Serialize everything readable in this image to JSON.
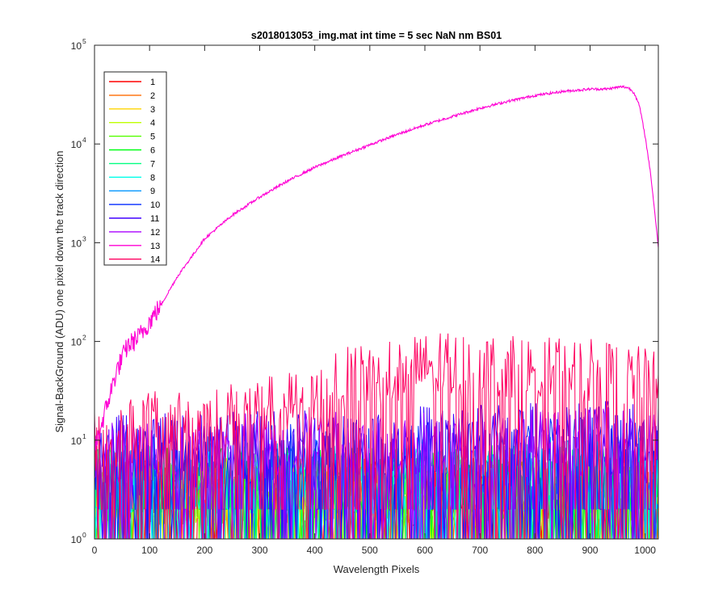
{
  "chart_data": {
    "type": "line",
    "title": "s2018013053_img.mat int time = 5 sec  NaN nm BS01",
    "xlabel": "Wavelength Pixels",
    "ylabel": "Signal-BackGround (ADU) one pixel down the track direction",
    "xlim": [
      0,
      1024
    ],
    "ylim": [
      1,
      100000
    ],
    "yscale": "log",
    "grid": false,
    "legend_position": "top-left",
    "x_ticks": [
      {
        "value": 0,
        "label": "0"
      },
      {
        "value": 100,
        "label": "100"
      },
      {
        "value": 200,
        "label": "200"
      },
      {
        "value": 300,
        "label": "300"
      },
      {
        "value": 400,
        "label": "400"
      },
      {
        "value": 500,
        "label": "500"
      },
      {
        "value": 600,
        "label": "600"
      },
      {
        "value": 700,
        "label": "700"
      },
      {
        "value": 800,
        "label": "800"
      },
      {
        "value": 900,
        "label": "900"
      },
      {
        "value": 1000,
        "label": "1000"
      }
    ],
    "y_ticks": [
      {
        "value": 1,
        "base": "10",
        "exp": "0"
      },
      {
        "value": 10,
        "base": "10",
        "exp": "1"
      },
      {
        "value": 100,
        "base": "10",
        "exp": "2"
      },
      {
        "value": 1000,
        "base": "10",
        "exp": "3"
      },
      {
        "value": 10000,
        "base": "10",
        "exp": "4"
      },
      {
        "value": 100000,
        "base": "10",
        "exp": "5"
      }
    ],
    "series": [
      {
        "name": "1",
        "color": "#ff0000",
        "kind": "noise",
        "x": [
          0,
          1024
        ],
        "y": [
          3,
          3
        ]
      },
      {
        "name": "2",
        "color": "#ff6a00",
        "kind": "noise",
        "x": [
          0,
          1024
        ],
        "y": [
          3,
          3
        ]
      },
      {
        "name": "3",
        "color": "#ffd500",
        "kind": "noise",
        "x": [
          0,
          1024
        ],
        "y": [
          3,
          3
        ]
      },
      {
        "name": "4",
        "color": "#bfff00",
        "kind": "noise",
        "x": [
          0,
          1024
        ],
        "y": [
          3,
          3
        ]
      },
      {
        "name": "5",
        "color": "#55ff00",
        "kind": "noise",
        "x": [
          0,
          1024
        ],
        "y": [
          3,
          3
        ]
      },
      {
        "name": "6",
        "color": "#00ff15",
        "kind": "noise",
        "x": [
          0,
          1024
        ],
        "y": [
          4,
          4
        ]
      },
      {
        "name": "7",
        "color": "#00ff80",
        "kind": "noise",
        "x": [
          0,
          1024
        ],
        "y": [
          4,
          4
        ]
      },
      {
        "name": "8",
        "color": "#00ffea",
        "kind": "noise",
        "x": [
          0,
          1024
        ],
        "y": [
          4,
          4
        ]
      },
      {
        "name": "9",
        "color": "#0095ff",
        "kind": "noise",
        "x": [
          0,
          1024
        ],
        "y": [
          5,
          5
        ]
      },
      {
        "name": "10",
        "color": "#002aff",
        "kind": "noise",
        "x": [
          0,
          1024
        ],
        "y": [
          6,
          8
        ]
      },
      {
        "name": "11",
        "color": "#4000ff",
        "kind": "noise",
        "x": [
          0,
          1024
        ],
        "y": [
          8,
          12
        ]
      },
      {
        "name": "12",
        "color": "#aa00ff",
        "kind": "noise",
        "x": [
          0,
          1024
        ],
        "y": [
          8,
          10
        ]
      },
      {
        "name": "13",
        "color": "#ff00d4",
        "kind": "spectrum",
        "x": [
          0,
          20,
          40,
          60,
          80,
          100,
          120,
          150,
          200,
          250,
          300,
          350,
          400,
          450,
          500,
          550,
          600,
          650,
          700,
          750,
          800,
          850,
          900,
          930,
          950,
          960,
          970,
          980,
          990,
          1000,
          1010,
          1020,
          1024
        ],
        "y": [
          8,
          20,
          50,
          90,
          110,
          160,
          230,
          450,
          1100,
          1900,
          2900,
          4200,
          5800,
          7600,
          9800,
          12500,
          15600,
          19000,
          23000,
          27000,
          31000,
          34000,
          36000,
          36000,
          37500,
          38000,
          37000,
          33000,
          24000,
          12000,
          5000,
          1500,
          900
        ]
      },
      {
        "name": "14",
        "color": "#ff0060",
        "kind": "noise",
        "x": [
          0,
          100,
          200,
          300,
          400,
          450,
          500,
          600,
          700,
          800,
          900,
          1000,
          1024
        ],
        "y": [
          10,
          14,
          16,
          20,
          25,
          40,
          45,
          55,
          55,
          50,
          48,
          40,
          35
        ]
      }
    ]
  }
}
